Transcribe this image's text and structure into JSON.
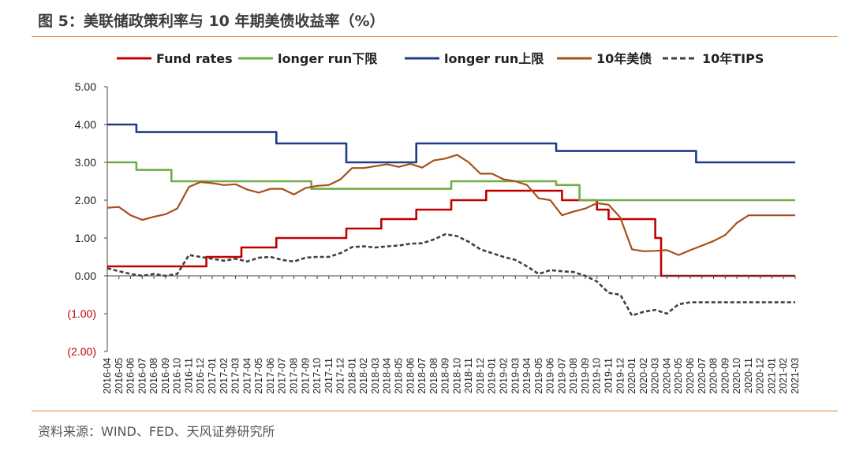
{
  "figure": {
    "title": "图 5：美联储政策利率与 10 年期美债收益率（%）",
    "source": "资料来源：WIND、FED、天风证券研究所"
  },
  "chart_data": {
    "type": "line",
    "title": "图 5：美联储政策利率与 10 年期美债收益率（%）",
    "xlabel": "",
    "ylabel": "",
    "ylim": [
      -2,
      5
    ],
    "y_ticks": [
      5,
      4,
      3,
      2,
      1,
      0,
      -1,
      -2
    ],
    "y_tick_labels": [
      "5.00",
      "4.00",
      "3.00",
      "2.00",
      "1.00",
      "0.00",
      "(1.00)",
      "(2.00)"
    ],
    "x_range": [
      "2016-04",
      "2021-03"
    ],
    "x_tick_labels": [
      "2016-04",
      "2016-05",
      "2016-06",
      "2016-07",
      "2016-08",
      "2016-09",
      "2016-10",
      "2016-11",
      "2016-12",
      "2017-01",
      "2017-02",
      "2017-03",
      "2017-04",
      "2017-05",
      "2017-06",
      "2017-07",
      "2017-08",
      "2017-09",
      "2017-10",
      "2017-11",
      "2017-12",
      "2018-01",
      "2018-02",
      "2018-03",
      "2018-04",
      "2018-05",
      "2018-06",
      "2018-07",
      "2018-08",
      "2018-09",
      "2018-10",
      "2018-11",
      "2018-12",
      "2019-01",
      "2019-02",
      "2019-03",
      "2019-04",
      "2019-05",
      "2019-06",
      "2019-07",
      "2019-08",
      "2019-09",
      "2019-10",
      "2019-11",
      "2019-12",
      "2020-01",
      "2020-02",
      "2020-03",
      "2020-04",
      "2020-05",
      "2020-06",
      "2020-07",
      "2020-08",
      "2020-09",
      "2020-10",
      "2020-11",
      "2020-12",
      "2021-01",
      "2021-02",
      "2021-03"
    ],
    "legend_position": "top",
    "series": [
      {
        "name": "Fund rates",
        "color": "#c00000",
        "style": "step",
        "points": [
          [
            0,
            0.25
          ],
          [
            8.5,
            0.25
          ],
          [
            8.5,
            0.5
          ],
          [
            11.5,
            0.5
          ],
          [
            11.5,
            0.75
          ],
          [
            14.5,
            0.75
          ],
          [
            14.5,
            1.0
          ],
          [
            20.5,
            1.0
          ],
          [
            20.5,
            1.25
          ],
          [
            23.5,
            1.25
          ],
          [
            23.5,
            1.5
          ],
          [
            26.5,
            1.5
          ],
          [
            26.5,
            1.75
          ],
          [
            29.5,
            1.75
          ],
          [
            29.5,
            2.0
          ],
          [
            32.5,
            2.0
          ],
          [
            32.5,
            2.25
          ],
          [
            39.0,
            2.25
          ],
          [
            39.0,
            2.0
          ],
          [
            42.0,
            2.0
          ],
          [
            42.0,
            1.75
          ],
          [
            43.0,
            1.75
          ],
          [
            43.0,
            1.5
          ],
          [
            47.0,
            1.5
          ],
          [
            47.0,
            1.0
          ],
          [
            47.5,
            1.0
          ],
          [
            47.5,
            0.0
          ],
          [
            59,
            0.0
          ]
        ]
      },
      {
        "name": "longer run下限",
        "color": "#70ad47",
        "style": "step",
        "points": [
          [
            0,
            3.0
          ],
          [
            2.5,
            3.0
          ],
          [
            2.5,
            2.8
          ],
          [
            5.5,
            2.8
          ],
          [
            5.5,
            2.5
          ],
          [
            17.5,
            2.5
          ],
          [
            17.5,
            2.3
          ],
          [
            29.5,
            2.3
          ],
          [
            29.5,
            2.5
          ],
          [
            38.5,
            2.5
          ],
          [
            38.5,
            2.4
          ],
          [
            40.5,
            2.4
          ],
          [
            40.5,
            2.0
          ],
          [
            59,
            2.0
          ]
        ]
      },
      {
        "name": "longer run上限",
        "color": "#1f3c88",
        "style": "step",
        "points": [
          [
            0,
            4.0
          ],
          [
            2.5,
            4.0
          ],
          [
            2.5,
            3.8
          ],
          [
            14.5,
            3.8
          ],
          [
            14.5,
            3.5
          ],
          [
            20.5,
            3.5
          ],
          [
            20.5,
            3.0
          ],
          [
            26.5,
            3.0
          ],
          [
            26.5,
            3.5
          ],
          [
            38.5,
            3.5
          ],
          [
            38.5,
            3.3
          ],
          [
            50.5,
            3.3
          ],
          [
            50.5,
            3.0
          ],
          [
            59,
            3.0
          ]
        ]
      },
      {
        "name": "10年美债",
        "color": "#a5501b",
        "style": "line",
        "points": [
          [
            0,
            1.8
          ],
          [
            1,
            1.82
          ],
          [
            2,
            1.6
          ],
          [
            3,
            1.48
          ],
          [
            4,
            1.56
          ],
          [
            5,
            1.63
          ],
          [
            6,
            1.78
          ],
          [
            7,
            2.35
          ],
          [
            8,
            2.48
          ],
          [
            9,
            2.45
          ],
          [
            10,
            2.4
          ],
          [
            11,
            2.42
          ],
          [
            12,
            2.28
          ],
          [
            13,
            2.2
          ],
          [
            14,
            2.3
          ],
          [
            15,
            2.3
          ],
          [
            16,
            2.15
          ],
          [
            17,
            2.32
          ],
          [
            18,
            2.38
          ],
          [
            19,
            2.4
          ],
          [
            20,
            2.55
          ],
          [
            21,
            2.85
          ],
          [
            22,
            2.85
          ],
          [
            23,
            2.9
          ],
          [
            24,
            2.95
          ],
          [
            25,
            2.88
          ],
          [
            26,
            2.96
          ],
          [
            27,
            2.86
          ],
          [
            28,
            3.05
          ],
          [
            29,
            3.1
          ],
          [
            30,
            3.2
          ],
          [
            31,
            3.0
          ],
          [
            32,
            2.7
          ],
          [
            33,
            2.7
          ],
          [
            34,
            2.55
          ],
          [
            35,
            2.5
          ],
          [
            36,
            2.4
          ],
          [
            37,
            2.05
          ],
          [
            38,
            2.0
          ],
          [
            39,
            1.6
          ],
          [
            40,
            1.7
          ],
          [
            41,
            1.78
          ],
          [
            42,
            1.92
          ],
          [
            43,
            1.88
          ],
          [
            44,
            1.54
          ],
          [
            45,
            0.7
          ],
          [
            46,
            0.65
          ],
          [
            47,
            0.66
          ],
          [
            48,
            0.68
          ],
          [
            49,
            0.55
          ],
          [
            50,
            0.68
          ],
          [
            51,
            0.8
          ],
          [
            52,
            0.92
          ],
          [
            53,
            1.08
          ],
          [
            54,
            1.4
          ],
          [
            55,
            1.6
          ],
          [
            56,
            1.6
          ],
          [
            57,
            1.6
          ],
          [
            58,
            1.6
          ],
          [
            59,
            1.6
          ]
        ]
      },
      {
        "name": "10年TIPS",
        "color": "#404040",
        "style": "dash",
        "points": [
          [
            0,
            0.2
          ],
          [
            1,
            0.12
          ],
          [
            2,
            0.05
          ],
          [
            3,
            0.0
          ],
          [
            4,
            0.05
          ],
          [
            5,
            0.0
          ],
          [
            6,
            0.05
          ],
          [
            7,
            0.55
          ],
          [
            8,
            0.5
          ],
          [
            9,
            0.45
          ],
          [
            10,
            0.4
          ],
          [
            11,
            0.45
          ],
          [
            12,
            0.38
          ],
          [
            13,
            0.48
          ],
          [
            14,
            0.5
          ],
          [
            15,
            0.42
          ],
          [
            16,
            0.38
          ],
          [
            17,
            0.48
          ],
          [
            18,
            0.5
          ],
          [
            19,
            0.5
          ],
          [
            20,
            0.6
          ],
          [
            21,
            0.76
          ],
          [
            22,
            0.78
          ],
          [
            23,
            0.75
          ],
          [
            24,
            0.78
          ],
          [
            25,
            0.8
          ],
          [
            26,
            0.85
          ],
          [
            27,
            0.86
          ],
          [
            28,
            0.96
          ],
          [
            29,
            1.1
          ],
          [
            30,
            1.05
          ],
          [
            31,
            0.9
          ],
          [
            32,
            0.7
          ],
          [
            33,
            0.6
          ],
          [
            34,
            0.5
          ],
          [
            35,
            0.42
          ],
          [
            36,
            0.25
          ],
          [
            37,
            0.05
          ],
          [
            38,
            0.15
          ],
          [
            39,
            0.12
          ],
          [
            40,
            0.1
          ],
          [
            41,
            0.0
          ],
          [
            42,
            -0.15
          ],
          [
            43,
            -0.45
          ],
          [
            44,
            -0.5
          ],
          [
            45,
            -1.05
          ],
          [
            46,
            -0.95
          ],
          [
            47,
            -0.9
          ],
          [
            48,
            -1.0
          ],
          [
            49,
            -0.75
          ],
          [
            50,
            -0.7
          ],
          [
            51,
            -0.7
          ],
          [
            52,
            -0.7
          ],
          [
            53,
            -0.7
          ],
          [
            54,
            -0.7
          ],
          [
            55,
            -0.7
          ],
          [
            56,
            -0.7
          ],
          [
            57,
            -0.7
          ],
          [
            58,
            -0.7
          ],
          [
            59,
            -0.7
          ]
        ]
      }
    ]
  }
}
